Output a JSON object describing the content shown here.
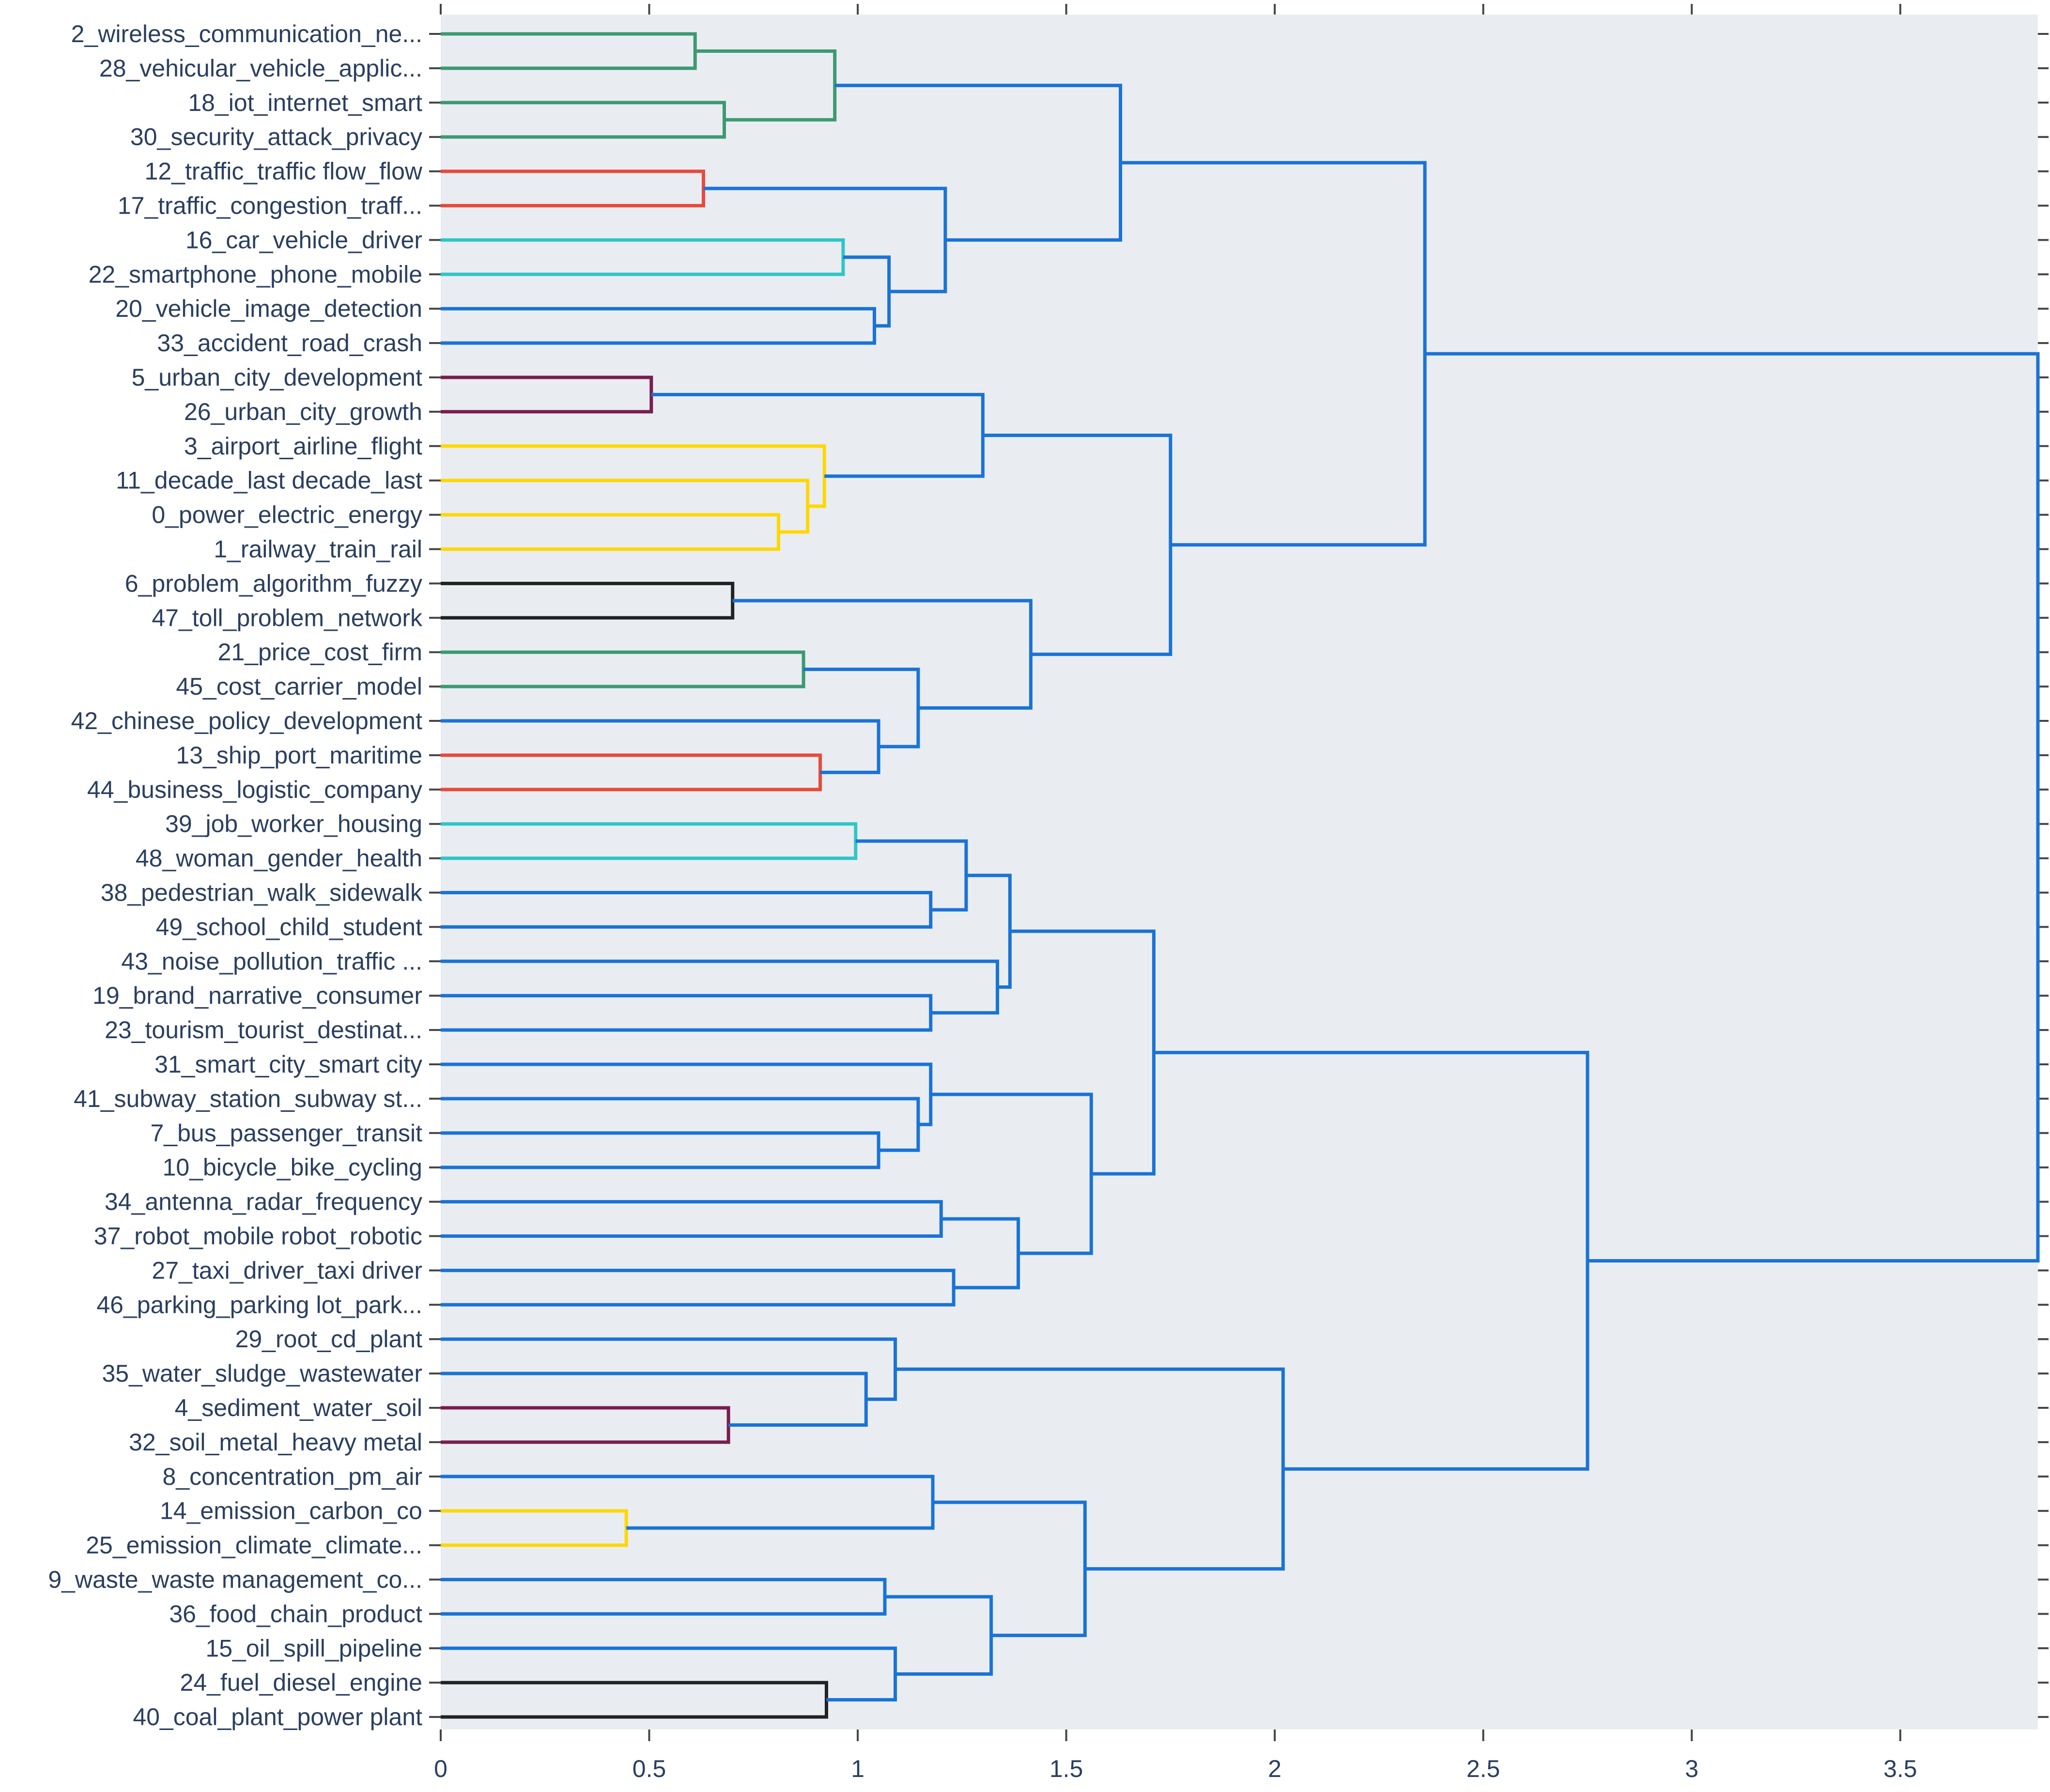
{
  "chart_data": {
    "type": "dendrogram",
    "title": "",
    "xlabel": "",
    "ylabel": "",
    "xlim": [
      0,
      3.83
    ],
    "xticks": [
      0,
      0.5,
      1,
      1.5,
      2,
      2.5,
      3,
      3.5
    ],
    "xtick_labels": [
      "0",
      "0.5",
      "1",
      "1.5",
      "2",
      "2.5",
      "3",
      "3.5"
    ],
    "background_color": "#e9edf2",
    "cluster_colors": {
      "green": "#3d9970",
      "red": "#e84a3c",
      "cyan": "#2ec6c8",
      "purple": "#7a1c4e",
      "yellow": "#ffd700",
      "black": "#222222",
      "blue": "#1a73d6"
    },
    "leaves": [
      "2_wireless_communication_ne...",
      "28_vehicular_vehicle_applic...",
      "18_iot_internet_smart",
      "30_security_attack_privacy",
      "12_traffic_traffic flow_flow",
      "17_traffic_congestion_traff...",
      "16_car_vehicle_driver",
      "22_smartphone_phone_mobile",
      "20_vehicle_image_detection",
      "33_accident_road_crash",
      "5_urban_city_development",
      "26_urban_city_growth",
      "3_airport_airline_flight",
      "11_decade_last decade_last",
      "0_power_electric_energy",
      "1_railway_train_rail",
      "6_problem_algorithm_fuzzy",
      "47_toll_problem_network",
      "21_price_cost_firm",
      "45_cost_carrier_model",
      "42_chinese_policy_development",
      "13_ship_port_maritime",
      "44_business_logistic_company",
      "39_job_worker_housing",
      "48_woman_gender_health",
      "38_pedestrian_walk_sidewalk",
      "49_school_child_student",
      "43_noise_pollution_traffic ...",
      "19_brand_narrative_consumer",
      "23_tourism_tourist_destinat...",
      "31_smart_city_smart city",
      "41_subway_station_subway st...",
      "7_bus_passenger_transit",
      "10_bicycle_bike_cycling",
      "34_antenna_radar_frequency",
      "37_robot_mobile robot_robotic",
      "27_taxi_driver_taxi driver",
      "46_parking_parking lot_park...",
      "29_root_cd_plant",
      "35_water_sludge_wastewater",
      "4_sediment_water_soil",
      "32_soil_metal_heavy metal",
      "8_concentration_pm_air",
      "14_emission_carbon_co",
      "25_emission_climate_climate...",
      "9_waste_waste management_co...",
      "36_food_chain_product",
      "15_oil_spill_pipeline",
      "24_fuel_diesel_engine",
      "40_coal_plant_power plant"
    ],
    "merges": [
      {
        "id": "n0",
        "left": 0,
        "right": 1,
        "height": 0.61,
        "color": "green"
      },
      {
        "id": "n1",
        "left": 2,
        "right": 3,
        "height": 0.68,
        "color": "green"
      },
      {
        "id": "n2",
        "left": "n0",
        "right": "n1",
        "height": 0.945,
        "color": "green"
      },
      {
        "id": "n3",
        "left": 4,
        "right": 5,
        "height": 0.63,
        "color": "red"
      },
      {
        "id": "n4",
        "left": 6,
        "right": 7,
        "height": 0.965,
        "color": "cyan"
      },
      {
        "id": "n5",
        "left": 8,
        "right": 9,
        "height": 1.04,
        "color": "blue"
      },
      {
        "id": "n6",
        "left": "n4",
        "right": "n5",
        "height": 1.075,
        "color": "blue"
      },
      {
        "id": "n7",
        "left": "n3",
        "right": "n6",
        "height": 1.21,
        "color": "blue"
      },
      {
        "id": "n8",
        "left": "n2",
        "right": "n7",
        "height": 1.63,
        "color": "blue"
      },
      {
        "id": "n9",
        "left": 10,
        "right": 11,
        "height": 0.505,
        "color": "purple"
      },
      {
        "id": "n10",
        "left": 14,
        "right": 15,
        "height": 0.81,
        "color": "yellow"
      },
      {
        "id": "n11",
        "left": 13,
        "right": "n10",
        "height": 0.88,
        "color": "yellow"
      },
      {
        "id": "n12",
        "left": 12,
        "right": "n11",
        "height": 0.92,
        "color": "yellow"
      },
      {
        "id": "n13",
        "left": "n9",
        "right": "n12",
        "height": 1.3,
        "color": "blue"
      },
      {
        "id": "n14",
        "left": 16,
        "right": 17,
        "height": 0.7,
        "color": "black"
      },
      {
        "id": "n15",
        "left": 18,
        "right": 19,
        "height": 0.87,
        "color": "green"
      },
      {
        "id": "n16",
        "left": 21,
        "right": 22,
        "height": 0.91,
        "color": "red"
      },
      {
        "id": "n17",
        "left": 20,
        "right": "n16",
        "height": 1.05,
        "color": "blue"
      },
      {
        "id": "n18",
        "left": "n15",
        "right": "n17",
        "height": 1.145,
        "color": "blue"
      },
      {
        "id": "n19",
        "left": "n14",
        "right": "n18",
        "height": 1.415,
        "color": "blue"
      },
      {
        "id": "n20",
        "left": "n13",
        "right": "n19",
        "height": 1.75,
        "color": "blue"
      },
      {
        "id": "n21",
        "left": "n8",
        "right": "n20",
        "height": 2.36,
        "color": "blue"
      },
      {
        "id": "n22",
        "left": 23,
        "right": 24,
        "height": 0.995,
        "color": "cyan"
      },
      {
        "id": "n23",
        "left": 25,
        "right": 26,
        "height": 1.175,
        "color": "blue"
      },
      {
        "id": "n24",
        "left": "n22",
        "right": "n23",
        "height": 1.26,
        "color": "blue"
      },
      {
        "id": "n25",
        "left": 28,
        "right": 29,
        "height": 1.175,
        "color": "blue"
      },
      {
        "id": "n26",
        "left": 27,
        "right": "n25",
        "height": 1.335,
        "color": "blue"
      },
      {
        "id": "n27",
        "left": "n24",
        "right": "n26",
        "height": 1.365,
        "color": "blue"
      },
      {
        "id": "n28",
        "left": 32,
        "right": 33,
        "height": 1.05,
        "color": "blue"
      },
      {
        "id": "n29",
        "left": 31,
        "right": "n28",
        "height": 1.145,
        "color": "blue"
      },
      {
        "id": "n30",
        "left": 30,
        "right": "n29",
        "height": 1.175,
        "color": "blue"
      },
      {
        "id": "n31",
        "left": 34,
        "right": 35,
        "height": 1.2,
        "color": "blue"
      },
      {
        "id": "n32",
        "left": 36,
        "right": 37,
        "height": 1.23,
        "color": "blue"
      },
      {
        "id": "n33",
        "left": "n31",
        "right": "n32",
        "height": 1.385,
        "color": "blue"
      },
      {
        "id": "n34",
        "left": "n30",
        "right": "n33",
        "height": 1.56,
        "color": "blue"
      },
      {
        "id": "n35",
        "left": "n27",
        "right": "n34",
        "height": 1.71,
        "color": "blue"
      },
      {
        "id": "n36",
        "left": 40,
        "right": 41,
        "height": 0.69,
        "color": "purple"
      },
      {
        "id": "n37",
        "left": 39,
        "right": "n36",
        "height": 1.02,
        "color": "blue"
      },
      {
        "id": "n38",
        "left": 38,
        "right": "n37",
        "height": 1.09,
        "color": "blue"
      },
      {
        "id": "n39",
        "left": 43,
        "right": 44,
        "height": 0.445,
        "color": "yellow"
      },
      {
        "id": "n40",
        "left": 42,
        "right": "n39",
        "height": 1.18,
        "color": "blue"
      },
      {
        "id": "n41",
        "left": 45,
        "right": 46,
        "height": 1.065,
        "color": "blue"
      },
      {
        "id": "n42",
        "left": 48,
        "right": 49,
        "height": 0.925,
        "color": "black"
      },
      {
        "id": "n43",
        "left": 47,
        "right": "n42",
        "height": 1.09,
        "color": "blue"
      },
      {
        "id": "n44",
        "left": "n41",
        "right": "n43",
        "height": 1.32,
        "color": "blue"
      },
      {
        "id": "n45",
        "left": "n40",
        "right": "n44",
        "height": 1.545,
        "color": "blue"
      },
      {
        "id": "n46",
        "left": "n38",
        "right": "n45",
        "height": 2.02,
        "color": "blue"
      },
      {
        "id": "n47",
        "left": "n35",
        "right": "n46",
        "height": 2.75,
        "color": "blue"
      },
      {
        "id": "n48",
        "left": "n21",
        "right": "n47",
        "height": 3.83,
        "color": "blue"
      }
    ]
  }
}
